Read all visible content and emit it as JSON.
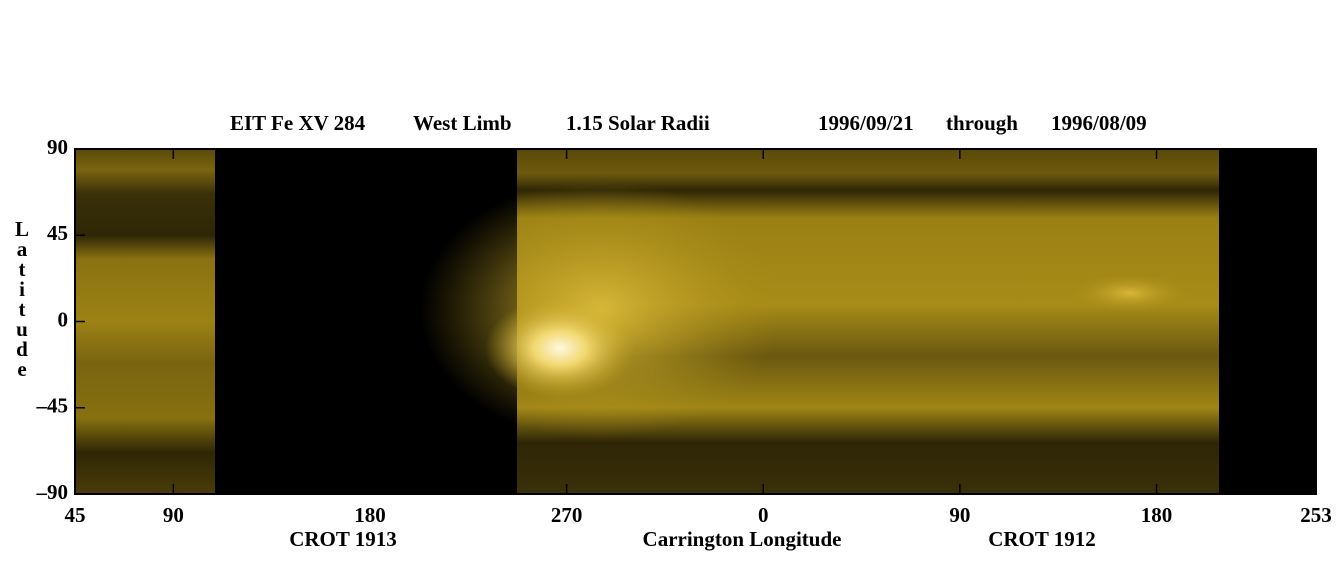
{
  "chart_data": {
    "type": "image",
    "title_parts": [
      "EIT Fe XV 284",
      "West Limb",
      "1.15 Solar Radii",
      "1996/09/21",
      "through",
      "1996/08/09"
    ],
    "ylabel": "Latitude",
    "xlabel": "Carrington Longitude",
    "x_annotations": [
      "CROT 1913",
      "CROT 1912"
    ],
    "xlim": [
      45,
      613
    ],
    "xticks": [
      45,
      90,
      180,
      270,
      {
        "value": 360,
        "label": "0"
      },
      {
        "value": 450,
        "label": "90"
      },
      {
        "value": 540,
        "label": "180"
      },
      {
        "value": 613,
        "label": "253"
      }
    ],
    "ylim": [
      -90,
      90
    ],
    "yticks": [
      90,
      45,
      0,
      -45,
      -90
    ]
  }
}
